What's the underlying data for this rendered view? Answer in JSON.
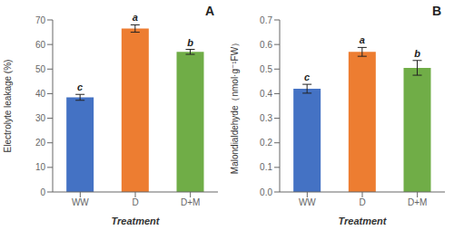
{
  "chart_data": [
    {
      "type": "bar",
      "categories": [
        "WW",
        "D",
        "D+M"
      ],
      "values": [
        38.5,
        66.5,
        57.0
      ],
      "errors": [
        1.2,
        1.5,
        1.0
      ],
      "colors": [
        "#4472C4",
        "#ED7D31",
        "#70AD47"
      ],
      "y_label": "Electrolyte leakage (%)",
      "x_label": "Treatment",
      "ylim": [
        0,
        70
      ],
      "yticks": [
        0,
        10,
        20,
        30,
        40,
        50,
        60,
        70
      ],
      "letters": [
        "c",
        "a",
        "b"
      ],
      "annotations": [
        "A"
      ]
    },
    {
      "type": "bar",
      "categories": [
        "WW",
        "D",
        "D+M"
      ],
      "values": [
        0.42,
        0.57,
        0.505
      ],
      "errors": [
        0.018,
        0.018,
        0.03
      ],
      "colors": [
        "#4472C4",
        "#ED7D31",
        "#70AD47"
      ],
      "y_label": "Malondialdehyde（nmol·g⁻¹FW）",
      "x_label": "Treatment",
      "ylim": [
        0,
        0.7
      ],
      "yticks": [
        {
          "value": 0.0,
          "label": "0.0"
        },
        0.1,
        0.2,
        0.3,
        0.4,
        0.5,
        0.6,
        0.7
      ],
      "letters": [
        "c",
        "a",
        "b"
      ],
      "annotations": [
        "B"
      ]
    }
  ]
}
